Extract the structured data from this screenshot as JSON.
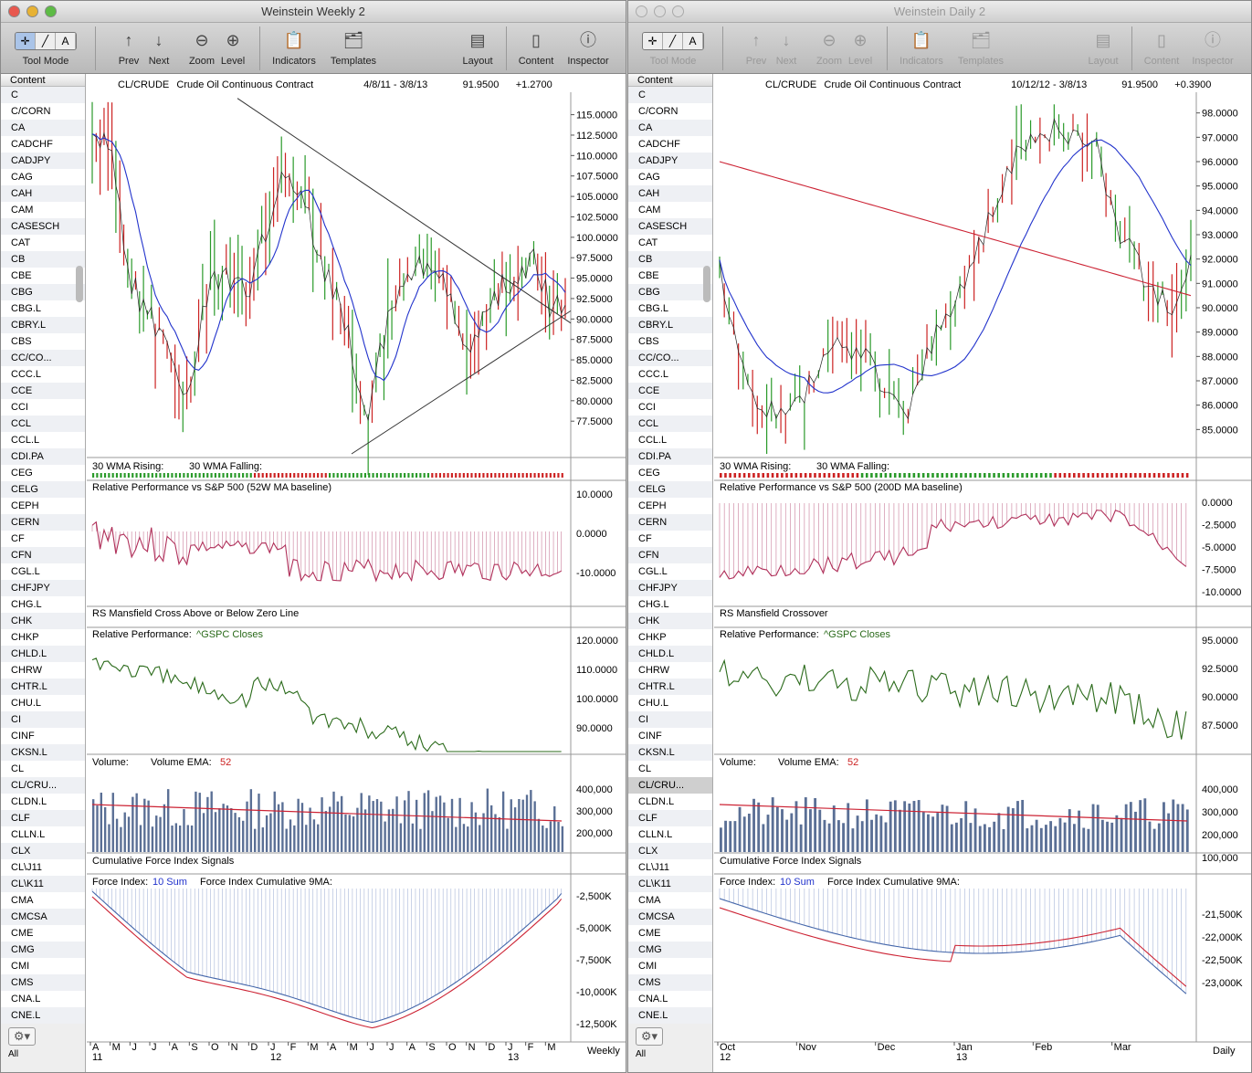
{
  "windows": [
    {
      "title": "Weinstein Weekly 2",
      "active": true,
      "selected_symbol": "CL/CRUDE",
      "symbols": [
        "C",
        "C/CORN",
        "CA",
        "CADCHF",
        "CADJPY",
        "CAG",
        "CAH",
        "CAM",
        "CASESCH",
        "CAT",
        "CB",
        "CBE",
        "CBG",
        "CBG.L",
        "CBRY.L",
        "CBS",
        "CC/CO...",
        "CCC.L",
        "CCE",
        "CCI",
        "CCL",
        "CCL.L",
        "CDI.PA",
        "CEG",
        "CELG",
        "CEPH",
        "CERN",
        "CF",
        "CFN",
        "CGL.L",
        "CHFJPY",
        "CHG.L",
        "CHK",
        "CHKP",
        "CHLD.L",
        "CHRW",
        "CHTR.L",
        "CHU.L",
        "CI",
        "CINF",
        "CKSN.L",
        "CL",
        "CL/CRU...",
        "CLDN.L",
        "CLF",
        "CLLN.L",
        "CLX",
        "CL\\J11",
        "CL\\K11",
        "CMA",
        "CMCSA",
        "CME",
        "CMG",
        "CMI",
        "CMS",
        "CNA.L",
        "CNE.L"
      ],
      "chart": {
        "header": {
          "symbol": "CL/CRUDE",
          "name": "Crude Oil Continuous Contract",
          "range": "4/8/11 - 3/8/13",
          "last": "91.9500",
          "change": "+1.2700"
        },
        "price_ticks": [
          "115.0000",
          "112.5000",
          "110.0000",
          "107.5000",
          "105.0000",
          "102.5000",
          "100.0000",
          "97.5000",
          "95.0000",
          "92.5000",
          "90.0000",
          "87.5000",
          "85.0000",
          "82.5000",
          "80.0000",
          "77.5000"
        ],
        "price_range": [
          73.5,
          117.3
        ],
        "wma_label": "30 WMA Rising:",
        "wma_falling_label": "30 WMA Falling:",
        "rp_title": "Relative Performance vs S&P 500 (52W MA baseline)",
        "rp_ticks": [
          "10.0000",
          "0.0000",
          "-10.0000"
        ],
        "rs_title": "RS Mansfield Cross Above or Below Zero Line",
        "rp2_title": "Relative Performance:",
        "rp2_series": "^GSPC Closes",
        "rp2_ticks": [
          "120.0000",
          "110.0000",
          "100.0000",
          "90.0000"
        ],
        "vol_title": "Volume:",
        "vol_ema": "Volume EMA:",
        "vol_ema_n": "52",
        "vol_ticks": [
          "400,000",
          "300,000",
          "200,000"
        ],
        "cfi_title": "Cumulative Force Index Signals",
        "fi_title": "Force Index:",
        "fi_sum": "10 Sum",
        "fi_cum": "Force Index Cumulative 9MA:",
        "fi_ticks": [
          "-2,500K",
          "-5,000K",
          "-7,500K",
          "-10,000K",
          "-12,500K"
        ],
        "months": [
          "A",
          "M",
          "J",
          "J",
          "A",
          "S",
          "O",
          "N",
          "D",
          "J",
          "F",
          "M",
          "A",
          "M",
          "J",
          "J",
          "A",
          "S",
          "O",
          "N",
          "D",
          "J",
          "F",
          "M"
        ],
        "years": [
          "11",
          "12",
          "13"
        ],
        "period": "Weekly"
      }
    },
    {
      "title": "Weinstein Daily 2",
      "active": false,
      "selected_symbol": "CL/CRU...",
      "symbols": [
        "C",
        "C/CORN",
        "CA",
        "CADCHF",
        "CADJPY",
        "CAG",
        "CAH",
        "CAM",
        "CASESCH",
        "CAT",
        "CB",
        "CBE",
        "CBG",
        "CBG.L",
        "CBRY.L",
        "CBS",
        "CC/CO...",
        "CCC.L",
        "CCE",
        "CCI",
        "CCL",
        "CCL.L",
        "CDI.PA",
        "CEG",
        "CELG",
        "CEPH",
        "CERN",
        "CF",
        "CFN",
        "CGL.L",
        "CHFJPY",
        "CHG.L",
        "CHK",
        "CHKP",
        "CHLD.L",
        "CHRW",
        "CHTR.L",
        "CHU.L",
        "CI",
        "CINF",
        "CKSN.L",
        "CL",
        "CL/CRU...",
        "CLDN.L",
        "CLF",
        "CLLN.L",
        "CLX",
        "CL\\J11",
        "CL\\K11",
        "CMA",
        "CMCSA",
        "CME",
        "CMG",
        "CMI",
        "CMS",
        "CNA.L",
        "CNE.L"
      ],
      "chart": {
        "header": {
          "symbol": "CL/CRUDE",
          "name": "Crude Oil Continuous Contract",
          "range": "10/12/12 - 3/8/13",
          "last": "91.9500",
          "change": "+0.3900"
        },
        "price_ticks": [
          "98.0000",
          "97.0000",
          "96.0000",
          "95.0000",
          "94.0000",
          "93.0000",
          "92.0000",
          "91.0000",
          "90.0000",
          "89.0000",
          "88.0000",
          "87.0000",
          "86.0000",
          "85.0000"
        ],
        "price_range": [
          84.0,
          98.7
        ],
        "wma_label": "30 WMA Rising:",
        "wma_falling_label": "30 WMA Falling:",
        "rp_title": "Relative Performance vs S&P 500 (200D MA baseline)",
        "rp_ticks": [
          "0.0000",
          "-2.5000",
          "-5.0000",
          "-7.5000",
          "-10.0000"
        ],
        "rs_title": "RS Mansfield Crossover",
        "rp2_title": "Relative Performance:",
        "rp2_series": "^GSPC Closes",
        "rp2_ticks": [
          "95.0000",
          "92.5000",
          "90.0000",
          "87.5000"
        ],
        "vol_title": "Volume:",
        "vol_ema": "Volume EMA:",
        "vol_ema_n": "52",
        "vol_ticks": [
          "400,000",
          "300,000",
          "200,000",
          "100,000"
        ],
        "cfi_title": "Cumulative Force Index Signals",
        "fi_title": "Force Index:",
        "fi_sum": "10 Sum",
        "fi_cum": "Force Index Cumulative 9MA:",
        "fi_ticks": [
          "-21,500K",
          "-22,000K",
          "-22,500K",
          "-23,000K"
        ],
        "months": [
          "Oct",
          "Nov",
          "Dec",
          "Jan",
          "Feb",
          "Mar"
        ],
        "years": [
          "12",
          "13"
        ],
        "period": "Daily"
      }
    }
  ],
  "toolbar": {
    "tool_mode": "Tool Mode",
    "prev": "Prev",
    "next": "Next",
    "zoom": "Zoom",
    "level": "Level",
    "indicators": "Indicators",
    "templates": "Templates",
    "layout": "Layout",
    "content": "Content",
    "inspector": "Inspector"
  },
  "sidebar": {
    "header": "Content",
    "footer": "All"
  },
  "colors": {
    "up": "#2a9a2a",
    "down": "#cc2222",
    "ma_blue": "#2233cc",
    "ma_red": "#cc2233",
    "rp": "#b0305a",
    "rp2": "#2a6a1a",
    "vol": "#5a6f95"
  }
}
